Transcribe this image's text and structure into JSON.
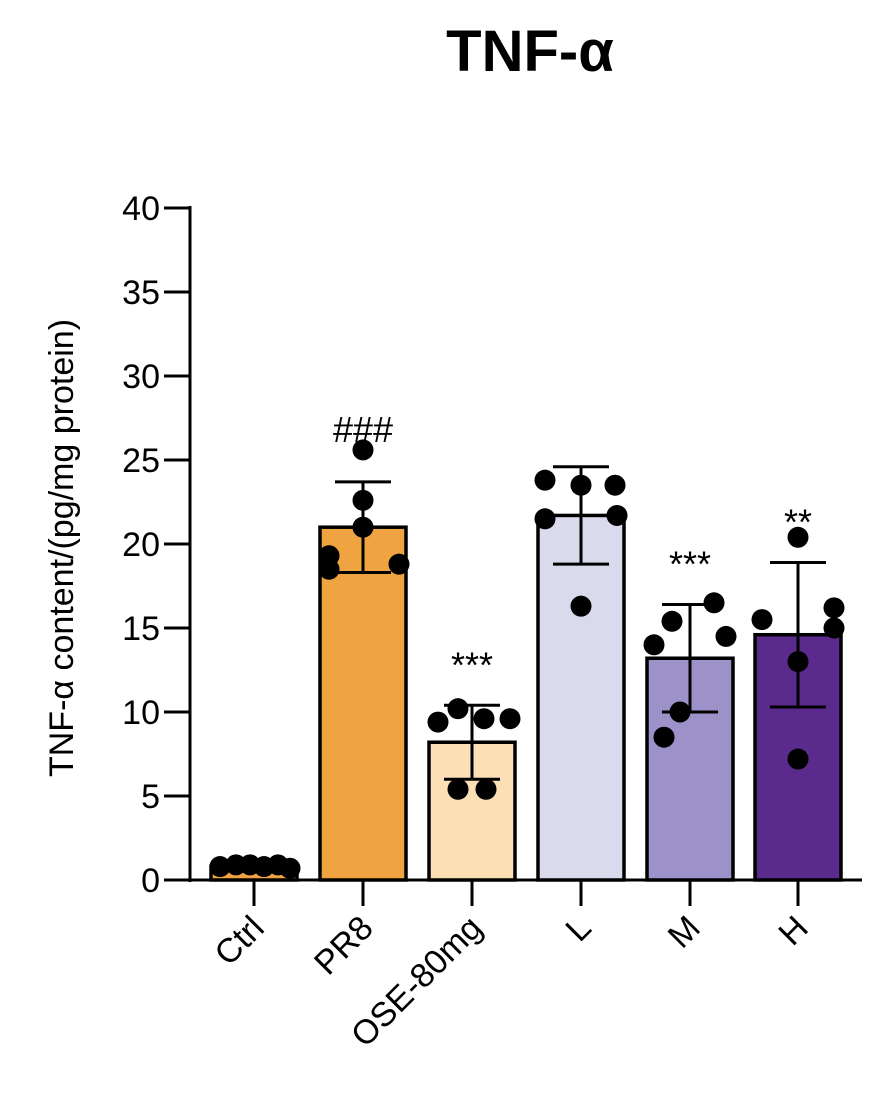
{
  "chart_data": {
    "type": "bar",
    "title": "TNF-α",
    "ylabel": "TNF-α content/(pg/mg protein)",
    "xlabel": "",
    "ylim": [
      0,
      40
    ],
    "yticks": [
      0,
      5,
      10,
      15,
      20,
      25,
      30,
      35,
      40
    ],
    "categories": [
      "Ctrl",
      "PR8",
      "OSE-80mg",
      "L",
      "M",
      "H"
    ],
    "values": [
      0.8,
      21.0,
      8.2,
      21.7,
      13.2,
      14.6
    ],
    "error": [
      0.1,
      2.7,
      2.2,
      2.9,
      3.2,
      4.3
    ],
    "colors": [
      "#F0A441",
      "#F0A441",
      "#FBDFB5",
      "#D9DAEC",
      "#9C91C8",
      "#5A2A8C"
    ],
    "annotations": [
      "",
      "###",
      "***",
      "",
      "***",
      "**"
    ],
    "points": [
      [
        0.8,
        0.9,
        0.9,
        0.8,
        0.9,
        0.7
      ],
      [
        25.6,
        22.6,
        21.0,
        19.3,
        18.5,
        18.8
      ],
      [
        10.2,
        9.4,
        9.6,
        9.6,
        5.4,
        5.4
      ],
      [
        23.8,
        23.5,
        23.5,
        21.7,
        21.5,
        16.3
      ],
      [
        16.5,
        15.4,
        14.0,
        14.5,
        10.0,
        8.5
      ],
      [
        20.4,
        15.5,
        16.2,
        15.0,
        13.0,
        7.2
      ]
    ]
  }
}
